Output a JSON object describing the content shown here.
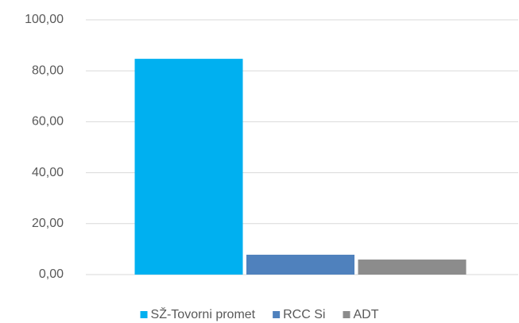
{
  "chart_data": {
    "type": "bar",
    "categories": [
      null
    ],
    "series": [
      {
        "name": "SŽ-Tovorni promet",
        "color": "#00b0f0",
        "values": [
          84.7
        ]
      },
      {
        "name": "RCC Si",
        "color": "#4f81bd",
        "values": [
          7.8
        ]
      },
      {
        "name": "ADT",
        "color": "#8c8c8c",
        "values": [
          5.9
        ]
      }
    ],
    "ylim": [
      0,
      100
    ],
    "yticks": [
      {
        "value": 0,
        "label": "0,00"
      },
      {
        "value": 20,
        "label": "20,00"
      },
      {
        "value": 40,
        "label": "40,00"
      },
      {
        "value": 60,
        "label": "60,00"
      },
      {
        "value": 80,
        "label": "80,00"
      },
      {
        "value": 100,
        "label": "100,00"
      }
    ],
    "grid": true,
    "legend": "bottom"
  }
}
